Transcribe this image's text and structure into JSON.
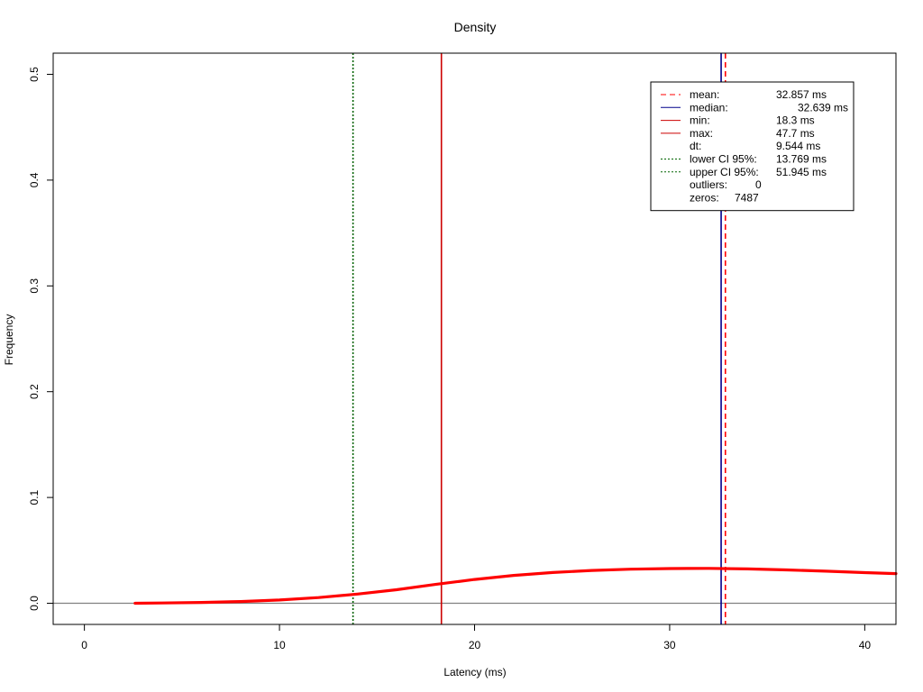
{
  "chart_data": {
    "type": "line",
    "title": "Density",
    "xlabel": "Latency (ms)",
    "ylabel": "Frequency",
    "xlim": [
      -1.6,
      41.6
    ],
    "ylim": [
      -0.02,
      0.52
    ],
    "xticks": [
      0,
      10,
      20,
      30,
      40
    ],
    "xtick_labels": [
      "0",
      "10",
      "20",
      "30",
      "40"
    ],
    "yticks": [
      0.0,
      0.1,
      0.2,
      0.3,
      0.4,
      0.5
    ],
    "ytick_labels": [
      "0.0",
      "0.1",
      "0.2",
      "0.3",
      "0.4",
      "0.5"
    ],
    "grid": false,
    "legend_position": "top-right",
    "baseline": {
      "y": 0,
      "color": "#808080"
    },
    "density_curve": {
      "color": "#ff0000",
      "x": [
        2.6,
        4,
        6,
        8,
        10,
        12,
        14,
        16,
        18,
        20,
        22,
        24,
        26,
        28,
        30,
        32,
        34,
        36,
        38,
        40,
        41.6
      ],
      "y": [
        0.0,
        0.0003,
        0.0008,
        0.0016,
        0.0031,
        0.0054,
        0.0087,
        0.0128,
        0.0178,
        0.0225,
        0.0263,
        0.0291,
        0.031,
        0.0322,
        0.0328,
        0.033,
        0.0325,
        0.0315,
        0.0303,
        0.029,
        0.028
      ]
    },
    "vertical_lines": [
      {
        "x": 13.769,
        "color": "#006400",
        "dash": "dotted"
      },
      {
        "x": 18.3,
        "color": "#cc0000",
        "dash": "solid"
      },
      {
        "x": 32.639,
        "color": "#00008b",
        "dash": "solid"
      },
      {
        "x": 32.857,
        "color": "#ff0000",
        "dash": "dashed"
      }
    ],
    "legend": [
      {
        "label": "mean:",
        "value": "32.857 ms",
        "color": "#ff0000",
        "dash": "dashed"
      },
      {
        "label": "median:",
        "value": "32.639 ms",
        "color": "#00008b",
        "dash": "solid",
        "indent": true
      },
      {
        "label": "min:",
        "value": "18.3 ms",
        "color": "#cc0000",
        "dash": "solid"
      },
      {
        "label": "max:",
        "value": "47.7 ms",
        "color": "#cc0000",
        "dash": "solid"
      },
      {
        "label": "dt:",
        "value": "9.544 ms",
        "color": null,
        "dash": null
      },
      {
        "label": "lower CI 95%:",
        "value": "13.769 ms",
        "color": "#006400",
        "dash": "dotted"
      },
      {
        "label": "upper CI 95%:",
        "value": "51.945 ms",
        "color": "#006400",
        "dash": "dotted"
      },
      {
        "label": "outliers:",
        "value": "0",
        "color": null,
        "dash": null,
        "compact": true
      },
      {
        "label": "zeros:",
        "value": "7487",
        "color": null,
        "dash": null,
        "compact": true
      }
    ]
  }
}
